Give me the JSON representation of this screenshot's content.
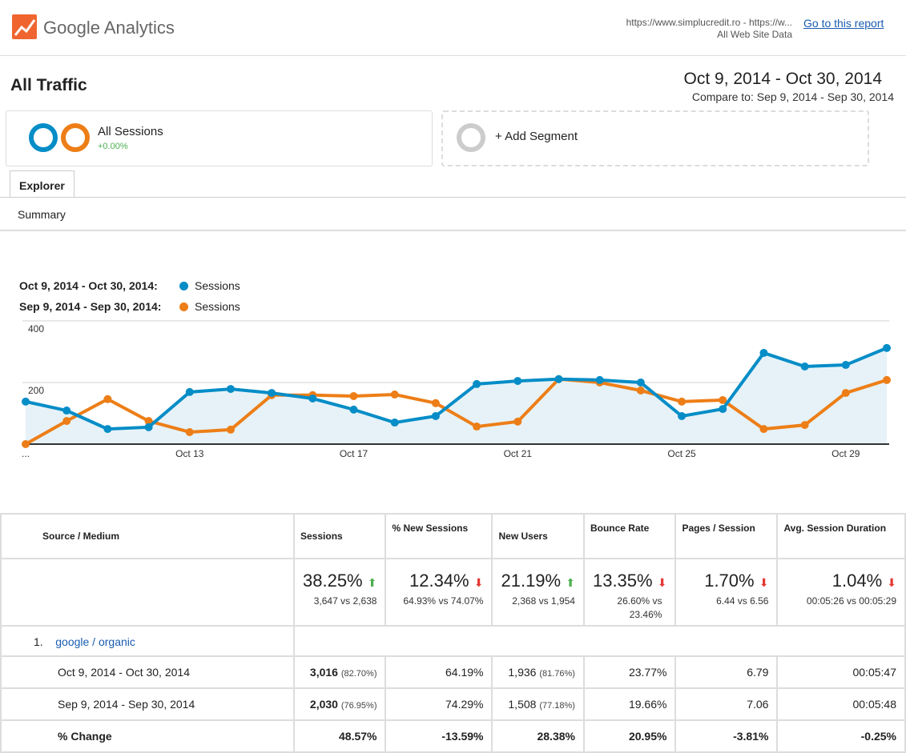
{
  "header": {
    "brand": "Google Analytics",
    "site_url": "https://www.simplucredit.ro - https://w...",
    "site_view": "All Web Site Data",
    "go_to_report": "Go to this report"
  },
  "report": {
    "title": "All Traffic",
    "date_range": "Oct 9, 2014 - Oct 30, 2014",
    "compare": "Compare to: Sep 9, 2014 - Sep 30, 2014"
  },
  "segments": {
    "all_sessions": "All Sessions",
    "all_sessions_change": "+0.00%",
    "add_segment": "+ Add Segment"
  },
  "tabs": {
    "explorer": "Explorer",
    "summary": "Summary"
  },
  "colors": {
    "current": "#058dc7",
    "previous": "#ed7e17",
    "fill": "#e6f2f8",
    "link": "#1a5cb0"
  },
  "chart_data": {
    "type": "line",
    "legend": [
      {
        "range": "Oct 9, 2014 - Oct 30, 2014:",
        "name": "Sessions"
      },
      {
        "range": "Sep 9, 2014 - Sep 30, 2014:",
        "name": "Sessions"
      }
    ],
    "x": [
      "Oct 9",
      "Oct 10",
      "Oct 11",
      "Oct 12",
      "Oct 13",
      "Oct 14",
      "Oct 15",
      "Oct 16",
      "Oct 17",
      "Oct 18",
      "Oct 19",
      "Oct 20",
      "Oct 21",
      "Oct 22",
      "Oct 23",
      "Oct 24",
      "Oct 25",
      "Oct 26",
      "Oct 27",
      "Oct 28",
      "Oct 29",
      "Oct 30"
    ],
    "x_tick_labels": [
      "...",
      "Oct 13",
      "Oct 17",
      "Oct 21",
      "Oct 25",
      "Oct 29"
    ],
    "y_ticks": [
      "400",
      "200"
    ],
    "ylim": [
      0,
      400
    ],
    "grid": true,
    "legend_placement": "top-left",
    "series": [
      {
        "name": "Sessions",
        "values": [
          138,
          109,
          49,
          55,
          169,
          179,
          166,
          148,
          112,
          70,
          91,
          195,
          205,
          211,
          208,
          200,
          91,
          114,
          296,
          252,
          257,
          312
        ]
      },
      {
        "name": "Sessions",
        "values": [
          0,
          75,
          146,
          75,
          39,
          47,
          159,
          159,
          156,
          161,
          133,
          57,
          73,
          211,
          200,
          174,
          138,
          143,
          49,
          62,
          166,
          208
        ]
      }
    ]
  },
  "table": {
    "headers": [
      "Source / Medium",
      "Sessions",
      "% New Sessions",
      "New Users",
      "Bounce Rate",
      "Pages / Session",
      "Avg. Session Duration"
    ],
    "totals": [
      {
        "pct": "38.25%",
        "dir": "up",
        "detail": "3,647 vs 2,638"
      },
      {
        "pct": "12.34%",
        "dir": "down",
        "detail": "64.93% vs 74.07%"
      },
      {
        "pct": "21.19%",
        "dir": "up",
        "detail": "2,368 vs 1,954"
      },
      {
        "pct": "13.35%",
        "dir": "down",
        "detail": "26.60% vs 23.46%"
      },
      {
        "pct": "1.70%",
        "dir": "down",
        "detail": "6.44 vs 6.56"
      },
      {
        "pct": "1.04%",
        "dir": "down",
        "detail": "00:05:26 vs 00:05:29"
      }
    ],
    "group": {
      "index": "1.",
      "label": "google / organic"
    },
    "rows": [
      {
        "label": "Oct 9, 2014 - Oct 30, 2014",
        "sessions": "3,016",
        "sessions_pct": "(82.70%)",
        "new_sessions": "64.19%",
        "new_users": "1,936",
        "new_users_pct": "(81.76%)",
        "bounce": "23.77%",
        "pages": "6.79",
        "duration": "00:05:47"
      },
      {
        "label": "Sep 9, 2014 - Sep 30, 2014",
        "sessions": "2,030",
        "sessions_pct": "(76.95%)",
        "new_sessions": "74.29%",
        "new_users": "1,508",
        "new_users_pct": "(77.18%)",
        "bounce": "19.66%",
        "pages": "7.06",
        "duration": "00:05:48"
      },
      {
        "label": "% Change",
        "sessions": "48.57%",
        "new_sessions": "-13.59%",
        "new_users": "28.38%",
        "bounce": "20.95%",
        "pages": "-3.81%",
        "duration": "-0.25%"
      }
    ]
  }
}
